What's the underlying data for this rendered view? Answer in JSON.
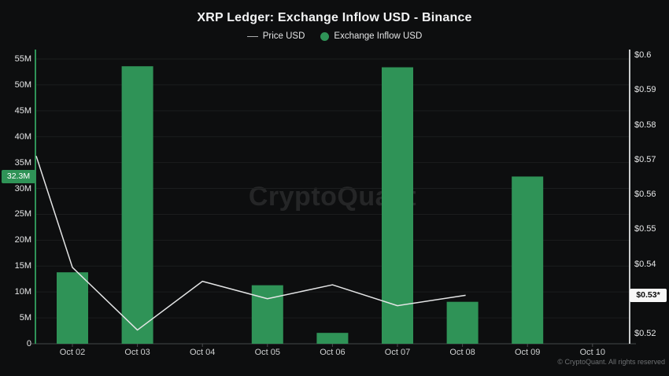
{
  "title": "XRP Ledger: Exchange Inflow USD - Binance",
  "legend": {
    "price": {
      "label": "Price USD",
      "swatch_color": "#a9abad"
    },
    "inflow": {
      "label": "Exchange Inflow USD",
      "swatch_color": "#2f9357"
    }
  },
  "watermark": "CryptoQuant",
  "footer": "© CryptoQuant. All rights reserved",
  "badges": {
    "inflow_last_label": "32.3M",
    "inflow_last_value_musd": 32.3,
    "price_last_label": "$0.53*",
    "price_last_value_usd": 0.531
  },
  "chart_data": {
    "type": "bar+line",
    "title": "XRP Ledger: Exchange Inflow USD - Binance",
    "categories": [
      "Oct 02",
      "Oct 03",
      "Oct 04",
      "Oct 05",
      "Oct 06",
      "Oct 07",
      "Oct 08",
      "Oct 09",
      "Oct 10"
    ],
    "series": [
      {
        "name": "Exchange Inflow USD",
        "type": "bar",
        "axis": "left",
        "color": "#2f9357",
        "unit": "M USD",
        "values": [
          13.8,
          53.6,
          0,
          11.3,
          2.1,
          53.4,
          8.1,
          32.3,
          0
        ]
      },
      {
        "name": "Price USD",
        "type": "line",
        "axis": "right",
        "color": "#e4e5e6",
        "unit": "USD",
        "edge_start_value": 0.571,
        "values": [
          0.539,
          0.521,
          0.535,
          0.53,
          0.534,
          0.528,
          0.531,
          null,
          null
        ]
      }
    ],
    "left_axis": {
      "min": 0,
      "max": 55,
      "tick_step_musd": 5,
      "tick_labels": [
        "0",
        "5M",
        "10M",
        "15M",
        "20M",
        "25M",
        "30M",
        "35M",
        "40M",
        "45M",
        "50M",
        "55M"
      ],
      "axis_color": "#2f9357"
    },
    "right_axis": {
      "min": 0.52,
      "max": 0.6,
      "tick_step_usd": 0.01,
      "tick_labels": [
        "$0.52",
        "$0.53",
        "$0.54",
        "$0.55",
        "$0.56",
        "$0.57",
        "$0.58",
        "$0.59",
        "$0.6"
      ],
      "axis_color": "#c9cbcc"
    },
    "grid": true,
    "gridline_color": "#1b1d1e",
    "legend_position": "top-center"
  }
}
